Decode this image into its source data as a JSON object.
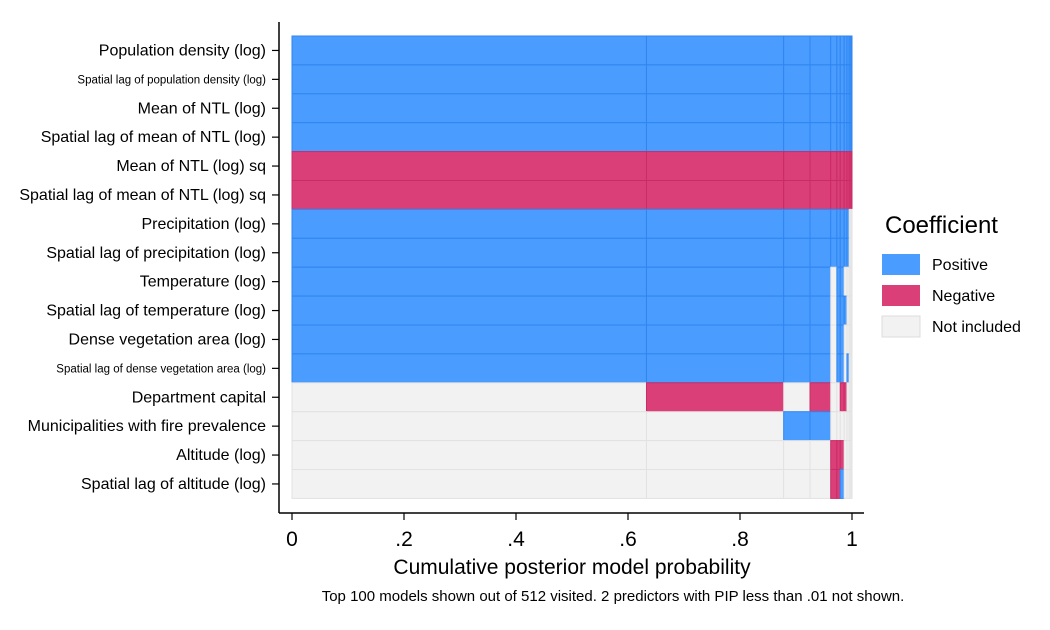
{
  "chart_data": {
    "type": "heatmap",
    "xlabel": "Cumulative posterior model probability",
    "xlim": [
      0,
      1
    ],
    "xticks": [
      "0",
      ".2",
      ".4",
      ".6",
      ".8",
      "1"
    ],
    "xtick_values": [
      0,
      0.2,
      0.4,
      0.6,
      0.8,
      1
    ],
    "note": "Top 100 models shown out of 512 visited. 2 predictors with PIP less than .01 not shown.",
    "legend": {
      "title": "Coefficient",
      "position": "right",
      "entries": [
        {
          "label": "Positive",
          "color": "#4a9cff"
        },
        {
          "label": "Negative",
          "color": "#db3f78"
        },
        {
          "label": "Not included",
          "color": "#f2f2f2"
        }
      ]
    },
    "variables": [
      "Population density (log)",
      "Spatial lag of population density (log)",
      "Mean of NTL (log)",
      "Spatial lag of mean of NTL (log)",
      "Mean of NTL (log) sq",
      "Spatial lag of mean of NTL (log) sq",
      "Precipitation (log)",
      "Spatial lag of precipitation (log)",
      "Temperature (log)",
      "Spatial lag of temperature (log)",
      "Dense vegetation area (log)",
      "Spatial lag of dense vegetation area (log)",
      "Department capital",
      "Municipalities with fire prevalence",
      "Altitude (log)",
      "Spatial lag of altitude (log)"
    ],
    "small_label_indices": [
      1,
      11
    ],
    "model_boundaries": [
      0,
      0.633,
      0.878,
      0.925,
      0.962,
      0.973,
      0.979,
      0.986,
      0.991,
      0.995,
      0.998,
      1.0
    ],
    "cells": [
      [
        "P",
        "P",
        "P",
        "P",
        "P",
        "P",
        "P",
        "P",
        "P",
        "P",
        "P"
      ],
      [
        "P",
        "P",
        "P",
        "P",
        "P",
        "P",
        "P",
        "P",
        "P",
        "P",
        "P"
      ],
      [
        "P",
        "P",
        "P",
        "P",
        "P",
        "P",
        "P",
        "P",
        "P",
        "P",
        "P"
      ],
      [
        "P",
        "P",
        "P",
        "P",
        "P",
        "P",
        "P",
        "P",
        "P",
        "P",
        "P"
      ],
      [
        "N",
        "N",
        "N",
        "N",
        "N",
        "N",
        "N",
        "N",
        "N",
        "N",
        "N"
      ],
      [
        "N",
        "N",
        "N",
        "N",
        "N",
        "N",
        "N",
        "N",
        "N",
        "N",
        "N"
      ],
      [
        "P",
        "P",
        "P",
        "P",
        "P",
        "P",
        "P",
        "P",
        "P",
        "0",
        "0"
      ],
      [
        "P",
        "P",
        "P",
        "P",
        "P",
        "P",
        "P",
        "P",
        "P",
        "0",
        "0"
      ],
      [
        "P",
        "P",
        "P",
        "P",
        "0",
        "P",
        "P",
        "0",
        "0",
        "0",
        "0"
      ],
      [
        "P",
        "P",
        "P",
        "P",
        "0",
        "P",
        "P",
        "P",
        "0",
        "0",
        "0"
      ],
      [
        "P",
        "P",
        "P",
        "P",
        "0",
        "P",
        "P",
        "0",
        "0",
        "0",
        "0"
      ],
      [
        "P",
        "P",
        "P",
        "P",
        "0",
        "P",
        "P",
        "0",
        "P",
        "0",
        "0"
      ],
      [
        "0",
        "N",
        "0",
        "N",
        "0",
        "0",
        "N",
        "N",
        "0",
        "0",
        "0"
      ],
      [
        "0",
        "0",
        "P",
        "P",
        "0",
        "0",
        "0",
        "0",
        "0",
        "0",
        "0"
      ],
      [
        "0",
        "0",
        "0",
        "0",
        "N",
        "N",
        "N",
        "0",
        "0",
        "0",
        "0"
      ],
      [
        "0",
        "0",
        "0",
        "0",
        "N",
        "N",
        "P",
        "0",
        "0",
        "0",
        "0"
      ]
    ]
  }
}
